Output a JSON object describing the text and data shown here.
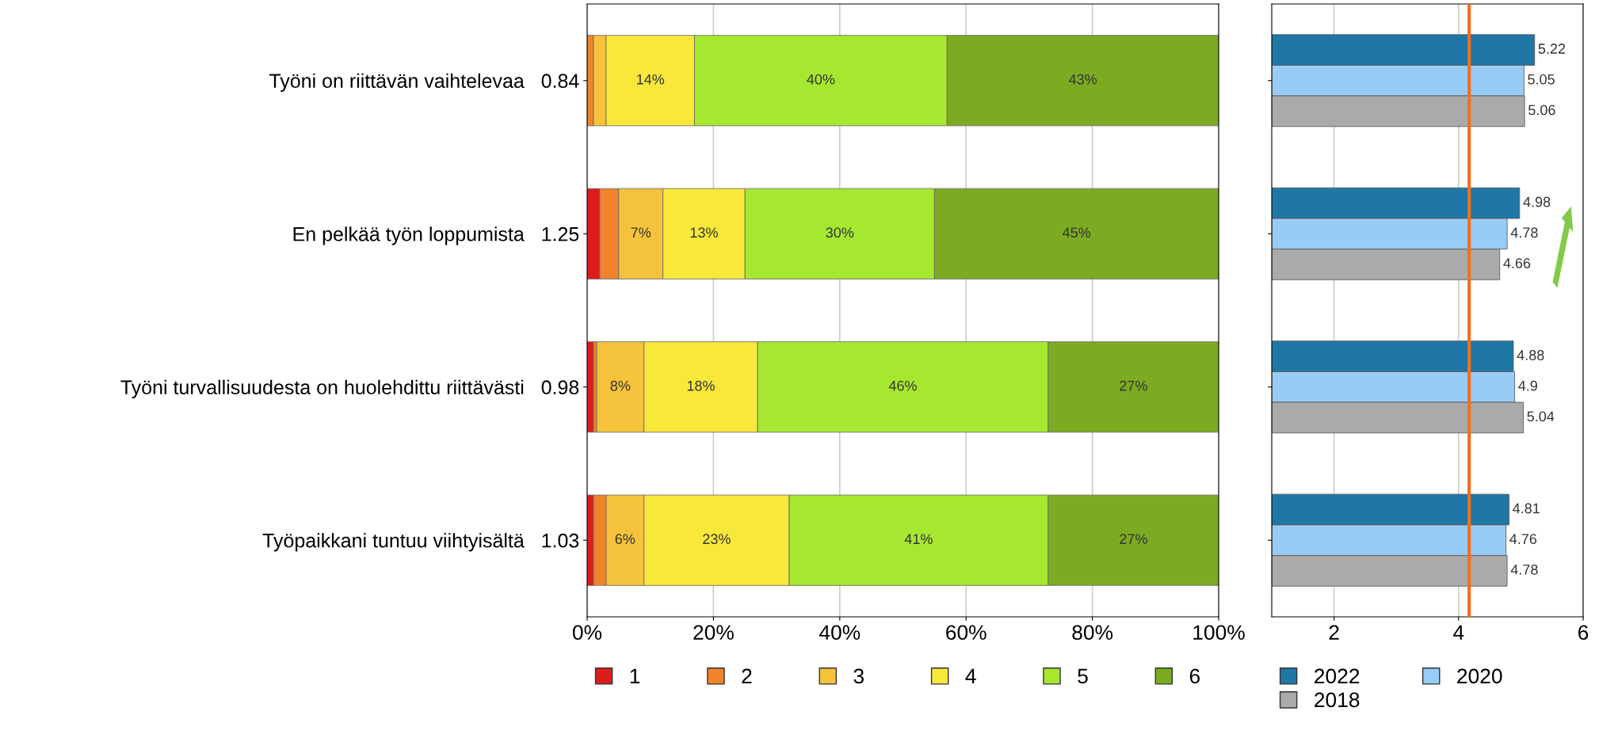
{
  "chart_data": [
    {
      "type": "bar",
      "orientation": "horizontal",
      "stacked": true,
      "categories": [
        "Työni on riittävän vaihtelevaa   0.84",
        "En pelkää työn loppumista   1.25",
        "Työni turvallisuudesta on huolehdittu riittävästi   0.98",
        "Työpaikkani tuntuu viihtyisältä   1.03"
      ],
      "xlim": [
        0,
        100
      ],
      "xticks": [
        {
          "value": 0,
          "label": "0%"
        },
        {
          "value": 20,
          "label": "20%"
        },
        {
          "value": 40,
          "label": "40%"
        },
        {
          "value": 60,
          "label": "60%"
        },
        {
          "value": 80,
          "label": "80%"
        },
        {
          "value": 100,
          "label": "100%"
        }
      ],
      "grid": "x",
      "legend": "bottom",
      "series": [
        {
          "name": "1",
          "color": "#dd1c1c",
          "values": [
            0,
            2,
            1,
            1
          ],
          "value_labels": [
            null,
            null,
            null,
            null
          ]
        },
        {
          "name": "2",
          "color": "#f0842c",
          "values": [
            1,
            3,
            0.5,
            2
          ],
          "value_labels": [
            null,
            null,
            null,
            null
          ]
        },
        {
          "name": "3",
          "color": "#f5c33b",
          "values": [
            2,
            7,
            7.5,
            6
          ],
          "value_labels": [
            null,
            "7%",
            "8%",
            "6%"
          ]
        },
        {
          "name": "4",
          "color": "#f8e83a",
          "values": [
            14,
            13,
            18,
            23
          ],
          "value_labels": [
            "14%",
            "13%",
            "18%",
            "23%"
          ]
        },
        {
          "name": "5",
          "color": "#a6e830",
          "values": [
            40,
            30,
            46,
            41
          ],
          "value_labels": [
            "40%",
            "30%",
            "46%",
            "41%"
          ]
        },
        {
          "name": "6",
          "color": "#7cab22",
          "values": [
            43,
            45,
            27,
            27
          ],
          "value_labels": [
            "43%",
            "45%",
            "27%",
            "27%"
          ]
        }
      ]
    },
    {
      "type": "bar",
      "orientation": "horizontal",
      "categories": [
        null,
        null,
        null,
        null
      ],
      "tick_labels": "x",
      "xlim": [
        1,
        6
      ],
      "xticks": [
        2,
        4,
        6
      ],
      "grid": "x",
      "legend": "bottom",
      "data_labels": true,
      "ref_lines": [
        {
          "axis": "x",
          "value": 4.17,
          "color": "#f07020"
        }
      ],
      "series": [
        {
          "name": "2022",
          "color": "#1f77a6",
          "values": [
            5.22,
            4.98,
            4.88,
            4.81
          ]
        },
        {
          "name": "2020",
          "color": "#99ccf5",
          "values": [
            5.05,
            4.78,
            4.9,
            4.76
          ]
        },
        {
          "name": "2018",
          "color": "#aaaaaa",
          "values": [
            5.06,
            4.66,
            5.04,
            4.78
          ]
        }
      ]
    }
  ]
}
